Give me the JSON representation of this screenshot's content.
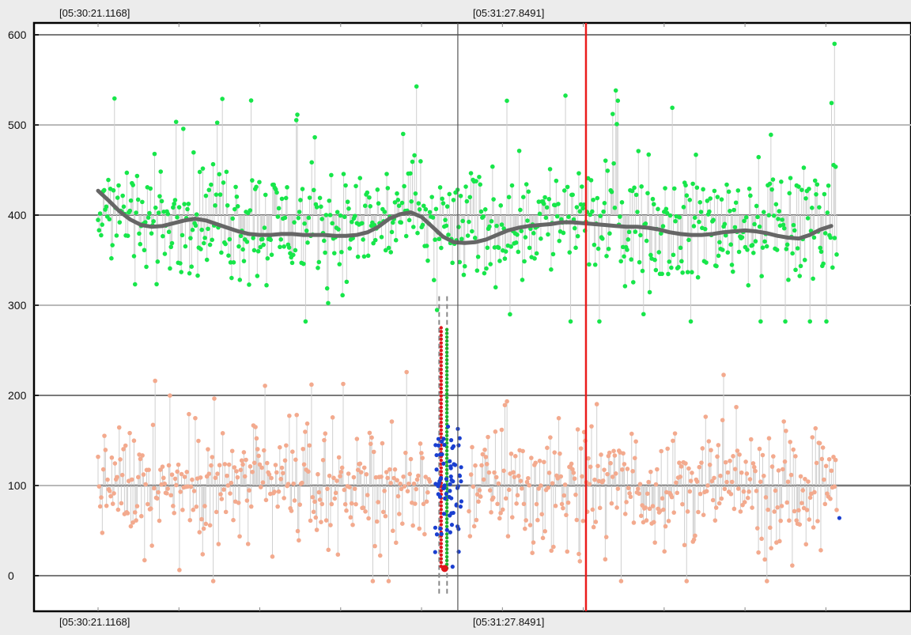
{
  "chart_data": {
    "type": "scatter",
    "title": "",
    "xlabel": "",
    "ylabel": "",
    "ylim": [
      -40,
      625
    ],
    "grid": true,
    "yticks": [
      0,
      100,
      200,
      300,
      400,
      500,
      600
    ],
    "timestamps": {
      "start": "[05:30:21.1168]",
      "cursor": "[05:31:27.8491]"
    },
    "x_range_seconds": [
      0,
      137
    ],
    "cursor_x_seconds": 66.73,
    "marker_x_seconds": 90.5,
    "colors": {
      "upper_series": "#17e64a",
      "lower_series": "#f3aa8e",
      "trend": "#666666",
      "burst_blue": "#1a3fd0",
      "burst_red": "#e0161b",
      "burst_green": "#1fb02a",
      "marker_line": "#ea1c1c",
      "cursor_line": "#555555",
      "stems": "#cfcfcf"
    },
    "upper_mean": 400,
    "lower_mean": 100,
    "trend_line": {
      "x": [
        0,
        2,
        4,
        6,
        8,
        10,
        12,
        14,
        16,
        18,
        20,
        22,
        24,
        26,
        28,
        30,
        32,
        34,
        36,
        38,
        40,
        42,
        44,
        46,
        48,
        50,
        52,
        54,
        56,
        58,
        60,
        62,
        64,
        66,
        68,
        70,
        72,
        74,
        76,
        78,
        80,
        82,
        84,
        86,
        88,
        90,
        92,
        94,
        96,
        98,
        100,
        102,
        104,
        106,
        108,
        110,
        112,
        114,
        116,
        118,
        120,
        122,
        124,
        126,
        128,
        130,
        132,
        134,
        136
      ],
      "y": [
        427,
        416,
        404,
        395,
        389,
        387,
        388,
        391,
        394,
        396,
        394,
        390,
        386,
        382,
        379,
        378,
        378,
        379,
        379,
        378,
        378,
        378,
        377,
        377,
        378,
        381,
        387,
        396,
        401,
        403,
        398,
        387,
        376,
        370,
        369,
        370,
        373,
        378,
        383,
        386,
        388,
        389,
        390,
        392,
        392,
        391,
        390,
        389,
        388,
        387,
        387,
        386,
        384,
        381,
        379,
        378,
        378,
        379,
        381,
        382,
        383,
        382,
        380,
        377,
        375,
        374,
        378,
        384,
        388
      ]
    },
    "upper_series_stats": {
      "mean": 400,
      "spread": 45,
      "min": 262,
      "max": 590
    },
    "lower_series_stats": {
      "mean": 100,
      "spread": 45,
      "min": -6,
      "max": 238
    },
    "burst_x_seconds": [
      62.5,
      67.5
    ]
  }
}
